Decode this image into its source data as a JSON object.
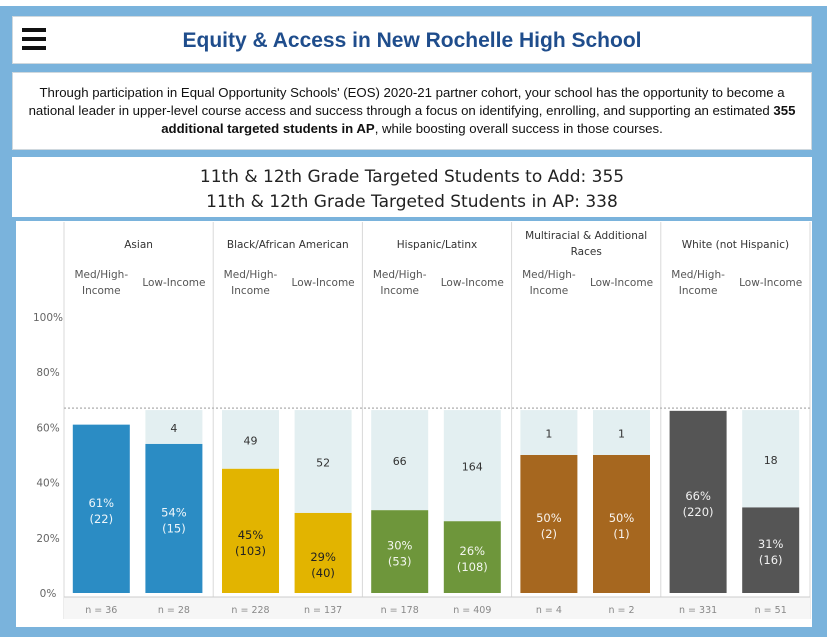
{
  "header": {
    "title": "Equity & Access in New Rochelle High School",
    "menu_icon": "hamburger-menu-icon"
  },
  "intro": {
    "text_before": "Through participation in Equal Opportunity Schools' (EOS) 2020-21 partner cohort, your school has the opportunity to become a national leader in upper-level course access and success through a focus on identifying, enrolling, and supporting an estimated ",
    "text_bold": "355 additional targeted students in AP",
    "text_after": ", while boosting overall success in those courses."
  },
  "kpis": {
    "line1": "11th & 12th Grade Targeted Students to Add: 355",
    "line2": "11th & 12th Grade Targeted Students in AP: 338"
  },
  "colors": {
    "frame": "#7ab3dc",
    "target_band": "#e3eff1",
    "Asian": "#2b8cc4",
    "Black/African American": "#e2b400",
    "Hispanic/Latinx": "#6e963b",
    "Multiracial & Additional Races": "#a6671f",
    "White (not Hispanic)": "#555555"
  },
  "chart_data": {
    "type": "bar",
    "title": "",
    "xlabel": "",
    "ylabel": "",
    "ylim": [
      0,
      100
    ],
    "y_ticks": [
      "0%",
      "20%",
      "40%",
      "60%",
      "80%",
      "100%"
    ],
    "y_tick_values": [
      0,
      20,
      40,
      60,
      80,
      100
    ],
    "target_line": 67,
    "groups": [
      {
        "name": "Asian",
        "bars": [
          {
            "label": "Med/High-Income",
            "value": 61,
            "value_label": "61%",
            "count_label": "(22)",
            "to_add": "",
            "n": "n = 36"
          },
          {
            "label": "Low-Income",
            "value": 54,
            "value_label": "54%",
            "count_label": "(15)",
            "to_add": "4",
            "n": "n = 28"
          }
        ]
      },
      {
        "name": "Black/African American",
        "bars": [
          {
            "label": "Med/High-Income",
            "value": 45,
            "value_label": "45%",
            "count_label": "(103)",
            "to_add": "49",
            "n": "n = 228"
          },
          {
            "label": "Low-Income",
            "value": 29,
            "value_label": "29%",
            "count_label": "(40)",
            "to_add": "52",
            "n": "n = 137"
          }
        ]
      },
      {
        "name": "Hispanic/Latinx",
        "bars": [
          {
            "label": "Med/High-Income",
            "value": 30,
            "value_label": "30%",
            "count_label": "(53)",
            "to_add": "66",
            "n": "n = 178"
          },
          {
            "label": "Low-Income",
            "value": 26,
            "value_label": "26%",
            "count_label": "(108)",
            "to_add": "164",
            "n": "n = 409"
          }
        ]
      },
      {
        "name": "Multiracial & Additional Races",
        "bars": [
          {
            "label": "Med/High-Income",
            "value": 50,
            "value_label": "50%",
            "count_label": "(2)",
            "to_add": "1",
            "n": "n = 4"
          },
          {
            "label": "Low-Income",
            "value": 50,
            "value_label": "50%",
            "count_label": "(1)",
            "to_add": "1",
            "n": "n = 2"
          }
        ]
      },
      {
        "name": "White (not Hispanic)",
        "bars": [
          {
            "label": "Med/High-Income",
            "value": 66,
            "value_label": "66%",
            "count_label": "(220)",
            "to_add": "",
            "n": "n = 331"
          },
          {
            "label": "Low-Income",
            "value": 31,
            "value_label": "31%",
            "count_label": "(16)",
            "to_add": "18",
            "n": "n = 51"
          }
        ]
      }
    ]
  }
}
